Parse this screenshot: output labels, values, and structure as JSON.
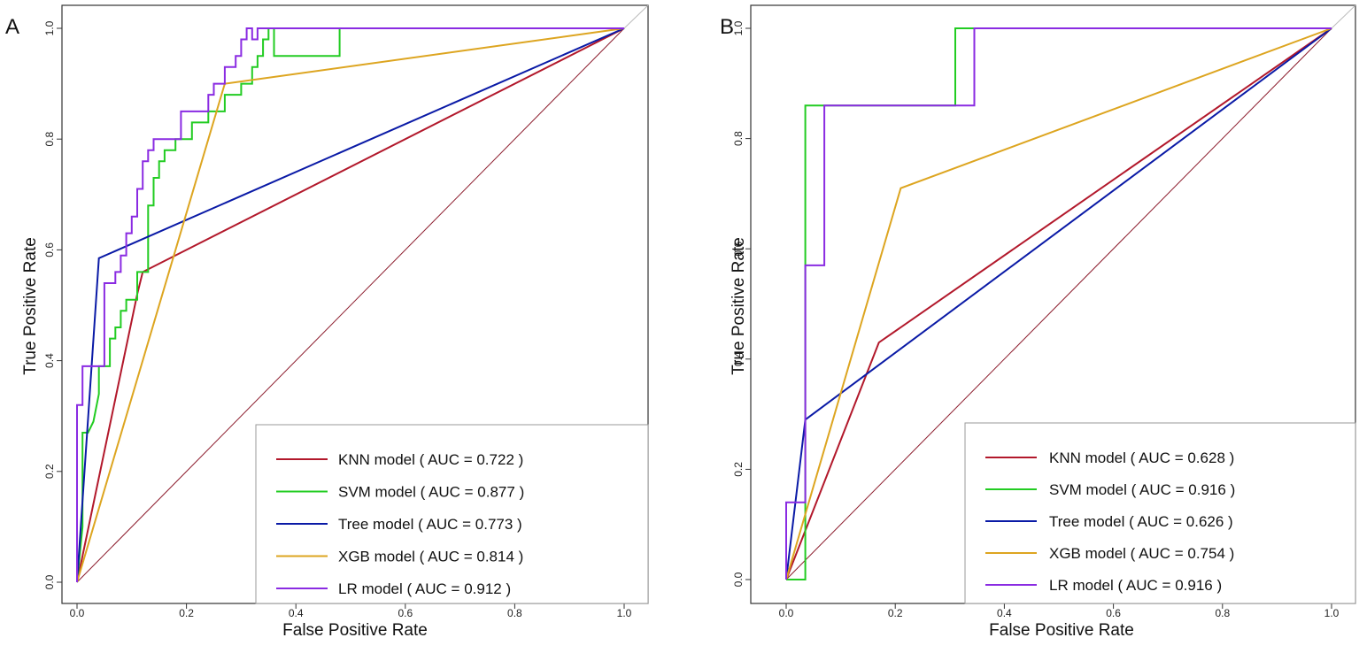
{
  "figure": {
    "panels": [
      "A",
      "B"
    ]
  },
  "chart_data": [
    {
      "type": "line",
      "panel_label": "A",
      "title": "",
      "xlabel": "False Positive Rate",
      "ylabel": "True Positive Rate",
      "xlim": [
        0,
        1
      ],
      "ylim": [
        0,
        1
      ],
      "xticks": [
        "0.0",
        "0.2",
        "0.4",
        "0.6",
        "0.8",
        "1.0"
      ],
      "yticks": [
        "0.0",
        "0.2",
        "0.4",
        "0.6",
        "0.8",
        "1.0"
      ],
      "legend_position": "bottom-right",
      "diagonal": true,
      "series": [
        {
          "name": "KNN model",
          "legend": "KNN model ( AUC =  0.722  )",
          "color": "#b2182b",
          "x": [
            0,
            0.11,
            0.12,
            1
          ],
          "y": [
            0,
            0.52,
            0.56,
            1
          ]
        },
        {
          "name": "SVM model",
          "legend": "SVM model ( AUC = 0.877  )",
          "color": "#22cc22",
          "x": [
            0,
            0.01,
            0.01,
            0.02,
            0.03,
            0.03,
            0.04,
            0.04,
            0.06,
            0.06,
            0.07,
            0.07,
            0.08,
            0.08,
            0.09,
            0.09,
            0.11,
            0.11,
            0.13,
            0.13,
            0.14,
            0.14,
            0.15,
            0.15,
            0.16,
            0.16,
            0.18,
            0.18,
            0.21,
            0.21,
            0.24,
            0.24,
            0.27,
            0.27,
            0.3,
            0.3,
            0.32,
            0.32,
            0.33,
            0.33,
            0.34,
            0.34,
            0.35,
            0.35,
            0.36,
            0.36,
            0.48,
            0.48,
            1
          ],
          "y": [
            0,
            0.1,
            0.27,
            0.27,
            0.29,
            0.29,
            0.34,
            0.39,
            0.39,
            0.44,
            0.44,
            0.46,
            0.46,
            0.49,
            0.49,
            0.51,
            0.51,
            0.56,
            0.56,
            0.68,
            0.68,
            0.73,
            0.73,
            0.76,
            0.76,
            0.78,
            0.78,
            0.8,
            0.8,
            0.83,
            0.83,
            0.85,
            0.85,
            0.88,
            0.88,
            0.9,
            0.9,
            0.93,
            0.93,
            0.95,
            0.95,
            0.98,
            0.98,
            1.0,
            1.0,
            0.95,
            0.95,
            1.0,
            1.0
          ]
        },
        {
          "name": "Tree model",
          "legend": "Tree model ( AUC = 0.773  )",
          "color": "#0a1aa6",
          "x": [
            0,
            0.04,
            1
          ],
          "y": [
            0,
            0.585,
            1
          ]
        },
        {
          "name": "XGB model",
          "legend": "XGB model ( AUC = 0.814  )",
          "color": "#dda520",
          "x": [
            0,
            0.27,
            1
          ],
          "y": [
            0,
            0.9,
            1
          ]
        },
        {
          "name": "LR model",
          "legend": "LR model ( AUC = 0.912  )",
          "color": "#8a2be2",
          "x": [
            0,
            0,
            0.01,
            0.01,
            0.05,
            0.05,
            0.07,
            0.07,
            0.08,
            0.08,
            0.09,
            0.09,
            0.1,
            0.1,
            0.11,
            0.11,
            0.12,
            0.12,
            0.13,
            0.13,
            0.14,
            0.14,
            0.19,
            0.19,
            0.24,
            0.24,
            0.25,
            0.25,
            0.27,
            0.27,
            0.29,
            0.29,
            0.3,
            0.3,
            0.31,
            0.31,
            0.32,
            0.32,
            0.33,
            0.33,
            1
          ],
          "y": [
            0,
            0.32,
            0.32,
            0.39,
            0.39,
            0.54,
            0.54,
            0.56,
            0.56,
            0.59,
            0.59,
            0.63,
            0.63,
            0.66,
            0.66,
            0.71,
            0.71,
            0.76,
            0.76,
            0.78,
            0.78,
            0.8,
            0.8,
            0.85,
            0.85,
            0.88,
            0.88,
            0.9,
            0.9,
            0.93,
            0.93,
            0.95,
            0.95,
            0.98,
            0.98,
            1.0,
            1.0,
            0.98,
            0.98,
            1.0,
            1.0
          ]
        }
      ]
    },
    {
      "type": "line",
      "panel_label": "B",
      "title": "",
      "xlabel": "False Positive Rate",
      "ylabel": "True Positive Rate",
      "xlim": [
        0,
        1
      ],
      "ylim": [
        0,
        1
      ],
      "xticks": [
        "0.0",
        "0.2",
        "0.4",
        "0.6",
        "0.8",
        "1.0"
      ],
      "yticks": [
        "0.0",
        "0.2",
        "0.4",
        "0.6",
        "0.8",
        "1.0"
      ],
      "legend_position": "bottom-right",
      "diagonal": true,
      "series": [
        {
          "name": "KNN model",
          "legend": "KNN model ( AUC =  0.628  )",
          "color": "#b2182b",
          "x": [
            0,
            0.17,
            1
          ],
          "y": [
            0,
            0.43,
            1
          ]
        },
        {
          "name": "SVM model",
          "legend": "SVM model ( AUC =  0.916  )",
          "color": "#22cc22",
          "x": [
            0,
            0.035,
            0.035,
            0.31,
            0.31,
            1
          ],
          "y": [
            0,
            0,
            0.86,
            0.86,
            1.0,
            1.0
          ]
        },
        {
          "name": "Tree model",
          "legend": "Tree model ( AUC =  0.626  )",
          "color": "#0a1aa6",
          "x": [
            0,
            0.035,
            1
          ],
          "y": [
            0,
            0.29,
            1
          ]
        },
        {
          "name": "XGB model",
          "legend": "XGB model ( AUC =  0.754  )",
          "color": "#dda520",
          "x": [
            0,
            0.21,
            1
          ],
          "y": [
            0,
            0.71,
            1
          ]
        },
        {
          "name": "LR model",
          "legend": "LR model ( AUC =  0.916  )",
          "color": "#8a2be2",
          "x": [
            0,
            0,
            0.035,
            0.035,
            0.07,
            0.07,
            0.345,
            0.345,
            1
          ],
          "y": [
            0,
            0.14,
            0.14,
            0.57,
            0.57,
            0.86,
            0.86,
            1.0,
            1.0
          ]
        }
      ]
    }
  ]
}
